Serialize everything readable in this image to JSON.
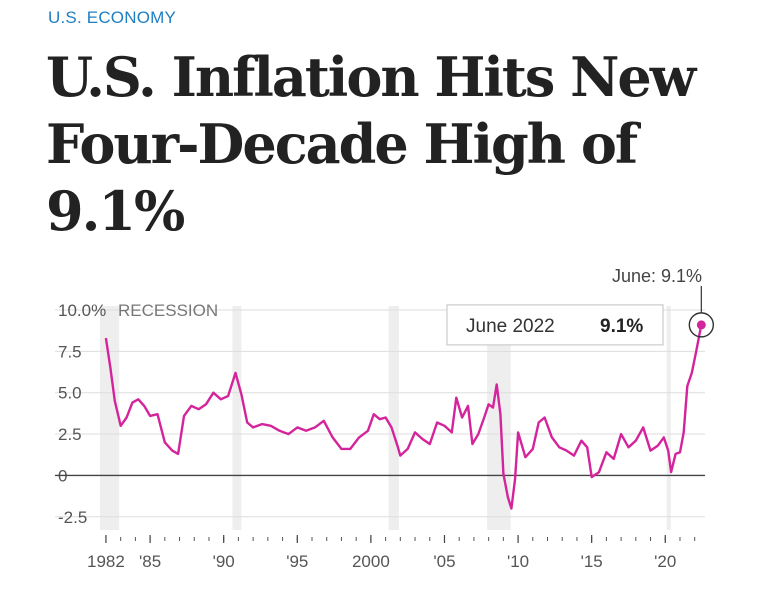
{
  "kicker": "U.S. ECONOMY",
  "headline": "U.S. Inflation Hits New Four-Decade High of 9.1%",
  "colors": {
    "accent": "#1f7fc1",
    "series": "#d4249b",
    "recession": "#eeeeee",
    "grid": "#dddddd",
    "zero": "#444444"
  },
  "chart_data": {
    "type": "line",
    "title": "",
    "xlabel": "",
    "ylabel": "",
    "ylim": [
      -3.3,
      10.0
    ],
    "xlim": [
      1981.8,
      2022.7
    ],
    "grid": true,
    "recession_label": "RECESSION",
    "recessions": [
      [
        1981.6,
        1982.9
      ],
      [
        1990.6,
        1991.2
      ],
      [
        2001.2,
        2001.9
      ],
      [
        2007.9,
        2009.5
      ],
      [
        2020.1,
        2020.35
      ]
    ],
    "y_ticks": [
      {
        "value": 10,
        "label": "10.0%"
      },
      {
        "value": 7.5,
        "label": "7.5"
      },
      {
        "value": 5,
        "label": "5.0"
      },
      {
        "value": 2.5,
        "label": "2.5"
      },
      {
        "value": 0,
        "label": "0"
      },
      {
        "value": -2.5,
        "label": "-2.5"
      }
    ],
    "x_ticks": [
      {
        "value": 1982,
        "label": "1982"
      },
      {
        "value": 1985,
        "label": "'85"
      },
      {
        "value": 1990,
        "label": "'90"
      },
      {
        "value": 1995,
        "label": "'95"
      },
      {
        "value": 2000,
        "label": "2000"
      },
      {
        "value": 2005,
        "label": "'05"
      },
      {
        "value": 2010,
        "label": "'10"
      },
      {
        "value": 2015,
        "label": "'15"
      },
      {
        "value": 2020,
        "label": "'20"
      }
    ],
    "series": [
      {
        "x": [
          1982.0,
          1982.3,
          1982.6,
          1983.0,
          1983.4,
          1983.8,
          1984.2,
          1984.6,
          1985.0,
          1985.5,
          1986.0,
          1986.5,
          1986.9,
          1987.3,
          1987.8,
          1988.3,
          1988.8,
          1989.3,
          1989.8,
          1990.3,
          1990.8,
          1991.2,
          1991.6,
          1992.0,
          1992.6,
          1993.2,
          1993.8,
          1994.4,
          1995.0,
          1995.6,
          1996.2,
          1996.8,
          1997.4,
          1998.0,
          1998.6,
          1999.2,
          1999.8,
          2000.2,
          2000.6,
          2001.0,
          2001.4,
          2001.8,
          2002.0,
          2002.5,
          2003.0,
          2003.5,
          2004.0,
          2004.5,
          2005.0,
          2005.5,
          2005.8,
          2006.2,
          2006.6,
          2006.9,
          2007.3,
          2007.7,
          2008.0,
          2008.3,
          2008.55,
          2008.8,
          2009.0,
          2009.3,
          2009.55,
          2009.8,
          2010.0,
          2010.5,
          2011.0,
          2011.4,
          2011.8,
          2012.3,
          2012.8,
          2013.3,
          2013.8,
          2014.3,
          2014.7,
          2015.0,
          2015.5,
          2016.0,
          2016.5,
          2017.0,
          2017.5,
          2018.0,
          2018.5,
          2019.0,
          2019.5,
          2019.9,
          2020.2,
          2020.4,
          2020.7,
          2021.0,
          2021.25,
          2021.5,
          2021.8,
          2022.1,
          2022.45
        ],
        "y": [
          8.3,
          6.5,
          4.5,
          3.0,
          3.5,
          4.4,
          4.6,
          4.2,
          3.6,
          3.7,
          2.0,
          1.5,
          1.3,
          3.6,
          4.2,
          4.0,
          4.3,
          5.0,
          4.6,
          4.8,
          6.2,
          4.9,
          3.2,
          2.9,
          3.1,
          3.0,
          2.7,
          2.5,
          2.9,
          2.7,
          2.9,
          3.3,
          2.3,
          1.6,
          1.6,
          2.3,
          2.7,
          3.7,
          3.4,
          3.5,
          2.9,
          1.8,
          1.2,
          1.6,
          2.6,
          2.2,
          1.9,
          3.2,
          3.0,
          2.6,
          4.7,
          3.5,
          4.2,
          1.9,
          2.5,
          3.5,
          4.3,
          4.1,
          5.5,
          3.7,
          0.1,
          -1.3,
          -2.0,
          -0.2,
          2.6,
          1.1,
          1.6,
          3.2,
          3.5,
          2.3,
          1.7,
          1.5,
          1.2,
          2.1,
          1.7,
          -0.1,
          0.2,
          1.4,
          1.0,
          2.5,
          1.7,
          2.1,
          2.9,
          1.5,
          1.8,
          2.3,
          1.5,
          0.2,
          1.3,
          1.4,
          2.6,
          5.4,
          6.2,
          7.5,
          9.1
        ]
      }
    ],
    "highlight": {
      "label": "June 2022",
      "value_label": "9.1%",
      "x": 2022.45,
      "y": 9.1
    },
    "callout": "June: 9.1%"
  }
}
